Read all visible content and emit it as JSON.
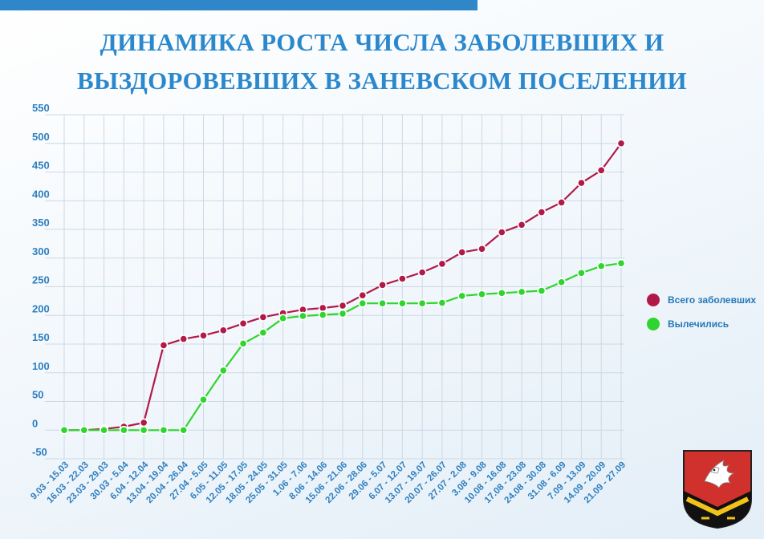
{
  "header": {
    "title_line1": "ДИНАМИКА РОСТА ЧИСЛА ЗАБОЛЕВШИХ И",
    "title_line2": "ВЫЗДОРОВЕВШИХ В ЗАНЕВСКОМ ПОСЕЛЕНИИ"
  },
  "colors": {
    "accent": "#2f86c9",
    "series_sick": "#b11a48",
    "series_recovered": "#2fd52f",
    "axis_text": "#2f7fc0"
  },
  "chart_data": {
    "type": "line",
    "title": "ДИНАМИКА РОСТА ЧИСЛА ЗАБОЛЕВШИХ И ВЫЗДОРОВЕВШИХ В ЗАНЕВСКОМ ПОСЕЛЕНИИ",
    "xlabel": "",
    "ylabel": "",
    "ylim": [
      -50,
      550
    ],
    "yticks": [
      -50,
      0,
      50,
      100,
      150,
      200,
      250,
      300,
      350,
      400,
      450,
      500,
      550
    ],
    "grid": true,
    "legend_position": "right",
    "categories": [
      "9.03 - 15.03",
      "16.03 - 22.03",
      "23.03 - 29.03",
      "30.03 - 5.04",
      "6.04 - 12.04",
      "13.04 - 19.04",
      "20.04 - 26.04",
      "27.04 - 5.05",
      "6.05 - 11.05",
      "12.05 - 17.05",
      "18.05 - 24.05",
      "25.05 - 31.05",
      "1.06 - 7.06",
      "8.06 - 14.06",
      "15.06 - 21.06",
      "22.06 - 28.06",
      "29.06 - 5.07",
      "6.07 - 12.07",
      "13.07 - 19.07",
      "20.07 - 26.07",
      "27.07 - 2.08",
      "3.08 - 9.08",
      "10.08 - 16.08",
      "17.08 - 23.08",
      "24.08 - 30.08",
      "31.08 - 6.09",
      "7.09 - 13.09",
      "14.09 - 20.09",
      "21.09 - 27.09"
    ],
    "series": [
      {
        "name": "Всего заболевших",
        "color": "#b11a48",
        "values": [
          0,
          0,
          2,
          6,
          13,
          148,
          159,
          165,
          174,
          186,
          197,
          204,
          210,
          213,
          217,
          235,
          253,
          264,
          275,
          290,
          310,
          316,
          345,
          358,
          380,
          397,
          431,
          453,
          500
        ]
      },
      {
        "name": "Вылечились",
        "color": "#2fd52f",
        "values": [
          0,
          0,
          0,
          0,
          0,
          0,
          0,
          53,
          104,
          151,
          170,
          195,
          199,
          201,
          203,
          221,
          221,
          221,
          221,
          222,
          234,
          237,
          239,
          241,
          243,
          258,
          274,
          286,
          291
        ]
      }
    ]
  }
}
